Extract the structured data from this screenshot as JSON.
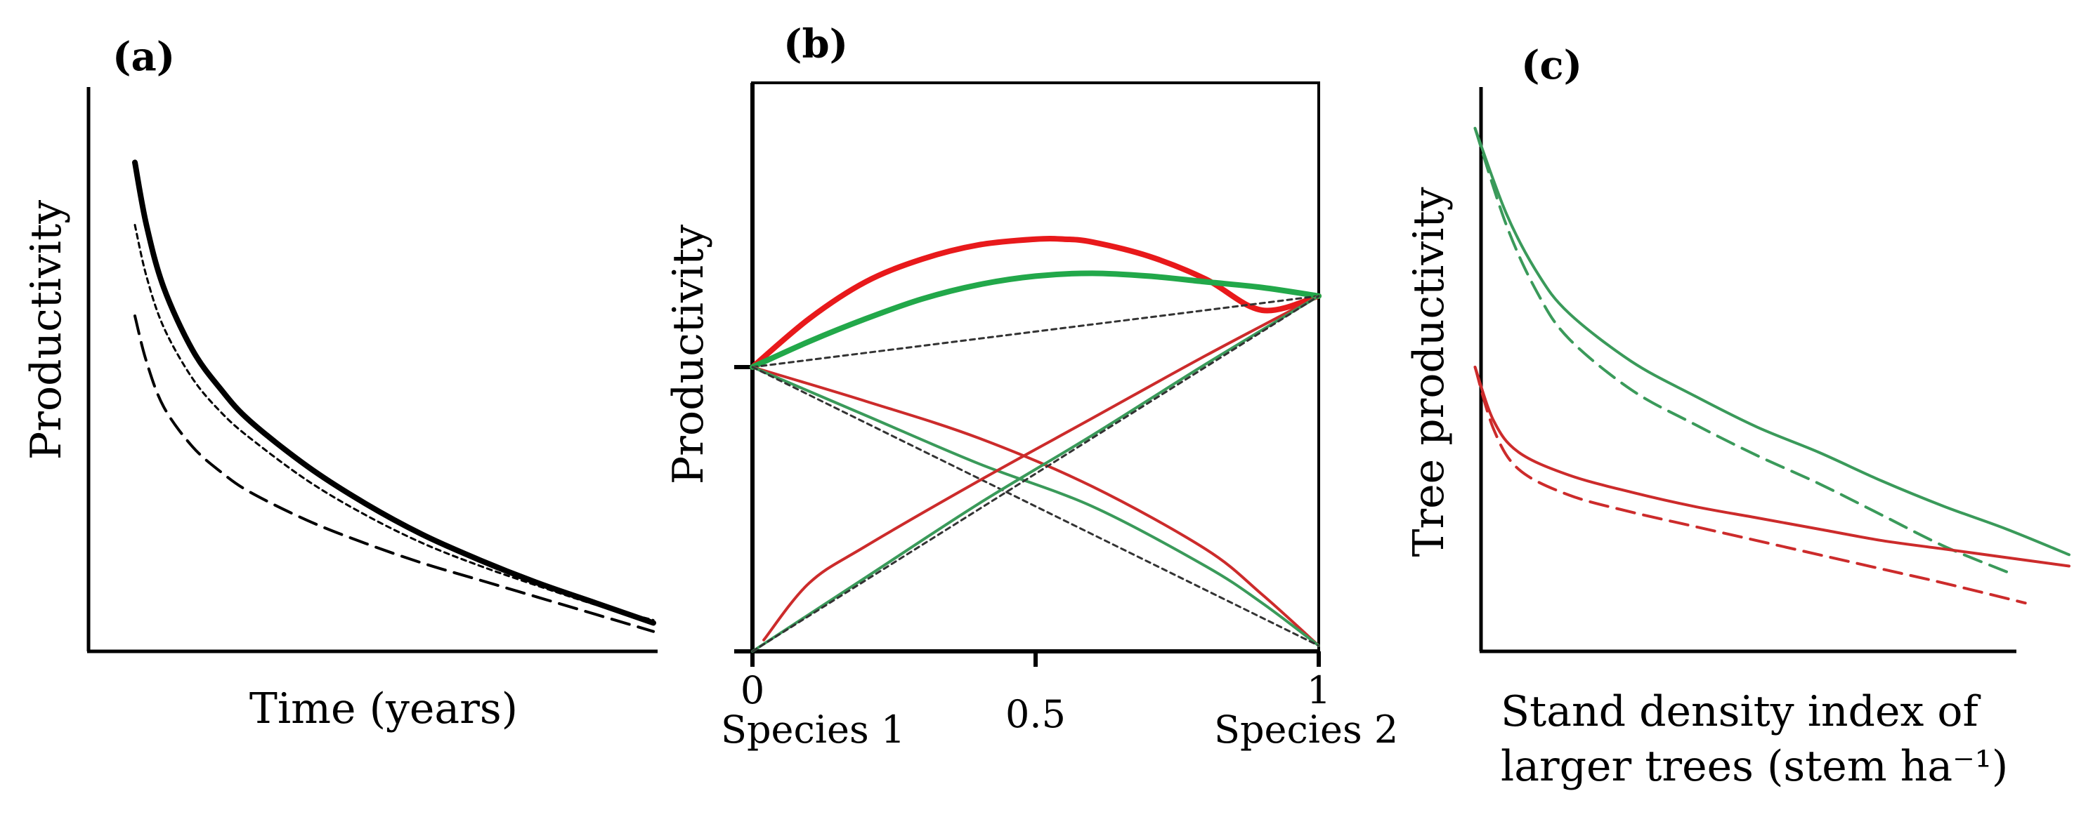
{
  "chart_data": [
    {
      "type": "line",
      "panel_label": "(a)",
      "xlabel": "Time (years)",
      "ylabel": "Productivity",
      "xlim": [
        0,
        10
      ],
      "ylim": [
        0,
        10
      ],
      "ticks": "none",
      "series": [
        {
          "name": "solid",
          "style": "solid-thick",
          "color": "#000000",
          "x": [
            1.0,
            1.2,
            1.5,
            2.0,
            2.5,
            3.0,
            4.0,
            5.0,
            6.0,
            7.0,
            8.0,
            9.0,
            10.0
          ],
          "y": [
            8.6,
            7.5,
            6.4,
            5.3,
            4.6,
            4.05,
            3.25,
            2.6,
            2.05,
            1.6,
            1.2,
            0.85,
            0.5
          ]
        },
        {
          "name": "short-dashed",
          "style": "dotted",
          "color": "#000000",
          "x": [
            1.0,
            1.2,
            1.5,
            2.0,
            2.5,
            3.0,
            4.0,
            5.0,
            6.0,
            7.0,
            8.0,
            9.0,
            10.0
          ],
          "y": [
            7.5,
            6.6,
            5.7,
            4.8,
            4.2,
            3.75,
            3.0,
            2.4,
            1.9,
            1.5,
            1.15,
            0.82,
            0.55
          ]
        },
        {
          "name": "long-dashed",
          "style": "dashed",
          "color": "#000000",
          "x": [
            1.0,
            1.2,
            1.5,
            2.0,
            2.5,
            3.0,
            4.0,
            5.0,
            6.0,
            7.0,
            8.0,
            9.0,
            10.0
          ],
          "y": [
            5.9,
            5.1,
            4.3,
            3.6,
            3.15,
            2.8,
            2.3,
            1.9,
            1.55,
            1.25,
            0.95,
            0.65,
            0.35
          ]
        }
      ]
    },
    {
      "type": "line",
      "panel_label": "(b)",
      "xlabel": "",
      "ylabel": "Productivity",
      "xlim": [
        0,
        1
      ],
      "ylim": [
        0,
        10
      ],
      "x_ticks": [
        0,
        0.5,
        1
      ],
      "x_tick_labels": [
        "0",
        "0.5",
        "1"
      ],
      "x_end_labels": [
        "Species 1",
        "Species 2"
      ],
      "y_ticks": [
        0,
        5
      ],
      "series": [
        {
          "name": "mixture total (red)",
          "style": "solid-thick",
          "color": "#e8191b",
          "x": [
            0,
            0.1,
            0.2,
            0.3,
            0.4,
            0.5,
            0.55,
            0.6,
            0.7,
            0.8,
            0.9,
            1.0
          ],
          "y": [
            5.0,
            5.85,
            6.5,
            6.9,
            7.15,
            7.25,
            7.25,
            7.2,
            6.95,
            6.55,
            6.0,
            6.25
          ]
        },
        {
          "name": "mixture total (green)",
          "style": "solid-thick",
          "color": "#22a84a",
          "x": [
            0,
            0.1,
            0.2,
            0.3,
            0.4,
            0.5,
            0.6,
            0.7,
            0.8,
            0.9,
            1.0
          ],
          "y": [
            5.0,
            5.45,
            5.85,
            6.2,
            6.45,
            6.6,
            6.65,
            6.6,
            6.5,
            6.4,
            6.25
          ]
        },
        {
          "name": "additive total",
          "style": "dotted",
          "color": "#333333",
          "x": [
            0,
            1
          ],
          "y": [
            5.0,
            6.25
          ]
        },
        {
          "name": "species 1 (red)",
          "style": "solid",
          "color": "#cc2b2b",
          "x": [
            0,
            0.2,
            0.4,
            0.6,
            0.8,
            0.9,
            1.0
          ],
          "y": [
            5.0,
            4.4,
            3.75,
            2.9,
            1.8,
            1.0,
            0.1
          ]
        },
        {
          "name": "species 1 (green)",
          "style": "solid",
          "color": "#3a9a5a",
          "x": [
            0,
            0.2,
            0.4,
            0.6,
            0.8,
            0.9,
            1.0
          ],
          "y": [
            5.0,
            4.15,
            3.3,
            2.55,
            1.5,
            0.85,
            0.1
          ]
        },
        {
          "name": "species 1 (additive)",
          "style": "dotted",
          "color": "#333333",
          "x": [
            0,
            1
          ],
          "y": [
            5.0,
            0.1
          ]
        },
        {
          "name": "species 2 (red)",
          "style": "solid",
          "color": "#cc2b2b",
          "x": [
            0.02,
            0.1,
            0.2,
            0.4,
            0.6,
            0.8,
            1.0
          ],
          "y": [
            0.2,
            1.2,
            1.85,
            3.0,
            4.1,
            5.2,
            6.25
          ]
        },
        {
          "name": "species 2 (green)",
          "style": "solid",
          "color": "#3a9a5a",
          "x": [
            0.0,
            0.2,
            0.4,
            0.6,
            0.8,
            1.0
          ],
          "y": [
            0.0,
            1.3,
            2.6,
            3.8,
            5.05,
            6.25
          ]
        },
        {
          "name": "species 2 (additive)",
          "style": "dotted",
          "color": "#333333",
          "x": [
            0,
            1
          ],
          "y": [
            0.0,
            6.25
          ]
        }
      ]
    },
    {
      "type": "line",
      "panel_label": "(c)",
      "xlabel": "Stand density index of larger trees (stem ha⁻¹)",
      "xlabel_lines": [
        "Stand density index of",
        "larger trees (stem ha⁻¹)"
      ],
      "ylabel": "Tree productivity",
      "xlim": [
        0,
        10
      ],
      "ylim": [
        0,
        10
      ],
      "ticks": "none",
      "series": [
        {
          "name": "green solid",
          "style": "solid",
          "color": "#3a9a5a",
          "x": [
            0.5,
            1.0,
            1.5,
            2.0,
            3.0,
            4.0,
            5.0,
            6.0,
            7.0,
            8.0,
            9.0,
            10.0
          ],
          "y": [
            9.2,
            7.7,
            6.65,
            5.95,
            5.1,
            4.5,
            3.95,
            3.5,
            3.0,
            2.55,
            2.15,
            1.7
          ]
        },
        {
          "name": "green dashed",
          "style": "dashed",
          "color": "#3a9a5a",
          "x": [
            0.5,
            1.0,
            1.5,
            2.0,
            3.0,
            4.0,
            5.0,
            6.0,
            7.0,
            8.0,
            9.0
          ],
          "y": [
            9.2,
            7.5,
            6.3,
            5.5,
            4.6,
            4.0,
            3.45,
            2.95,
            2.4,
            1.85,
            1.4
          ]
        },
        {
          "name": "red solid",
          "style": "solid",
          "color": "#cc2b2b",
          "x": [
            0.5,
            0.8,
            1.2,
            2.0,
            3.0,
            4.0,
            5.0,
            6.0,
            7.0,
            8.0,
            9.0,
            10.0
          ],
          "y": [
            5.0,
            4.05,
            3.5,
            3.1,
            2.8,
            2.55,
            2.35,
            2.15,
            1.95,
            1.8,
            1.65,
            1.5
          ]
        },
        {
          "name": "red dashed",
          "style": "dashed",
          "color": "#cc2b2b",
          "x": [
            0.5,
            0.8,
            1.2,
            2.0,
            3.0,
            4.0,
            5.0,
            6.0,
            7.0,
            8.0,
            9.3
          ],
          "y": [
            5.0,
            3.9,
            3.2,
            2.75,
            2.45,
            2.2,
            1.95,
            1.7,
            1.45,
            1.2,
            0.85
          ]
        }
      ]
    }
  ]
}
